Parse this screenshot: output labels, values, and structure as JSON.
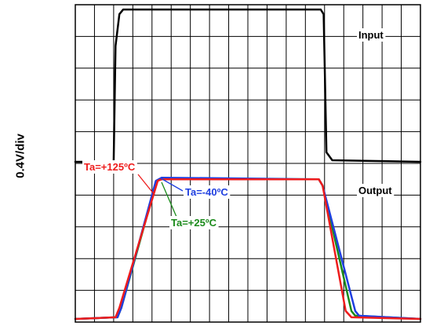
{
  "chart_data": {
    "type": "line",
    "ylabel": "0.4V/div",
    "grid": true,
    "x_divisions": 18,
    "y_divisions": 10,
    "xlim": [
      0,
      18
    ],
    "ylim": [
      0,
      10
    ],
    "channel_labels": {
      "input": "Input",
      "output": "Output"
    },
    "series": [
      {
        "name": "Input",
        "color": "#000000",
        "x": [
          0,
          2.0,
          2.1,
          2.3,
          2.5,
          12.8,
          12.95,
          13.1,
          13.4,
          18
        ],
        "y": [
          5.05,
          5.05,
          8.7,
          9.7,
          9.85,
          9.85,
          9.7,
          5.35,
          5.1,
          5.05
        ]
      },
      {
        "name": "Ta=-40ºC",
        "color": "#1f3fe0",
        "x": [
          0,
          2.2,
          2.4,
          4.2,
          4.5,
          12.7,
          12.9,
          14.6,
          14.8,
          18
        ],
        "y": [
          0.1,
          0.15,
          0.45,
          4.45,
          4.55,
          4.5,
          4.3,
          0.35,
          0.2,
          0.1
        ]
      },
      {
        "name": "Ta=+25ºC",
        "color": "#1a8a1a",
        "x": [
          0,
          2.2,
          2.4,
          4.25,
          4.5,
          12.7,
          12.9,
          14.4,
          14.6,
          18
        ],
        "y": [
          0.1,
          0.15,
          0.45,
          4.45,
          4.5,
          4.5,
          4.3,
          0.35,
          0.2,
          0.1
        ]
      },
      {
        "name": "Ta=+125ºC",
        "color": "#ee1c1c",
        "x": [
          0,
          2.1,
          2.3,
          4.3,
          4.5,
          12.7,
          12.9,
          14.1,
          14.4,
          18
        ],
        "y": [
          0.1,
          0.15,
          0.45,
          4.45,
          4.5,
          4.5,
          4.3,
          0.35,
          0.15,
          0.1
        ]
      }
    ]
  }
}
